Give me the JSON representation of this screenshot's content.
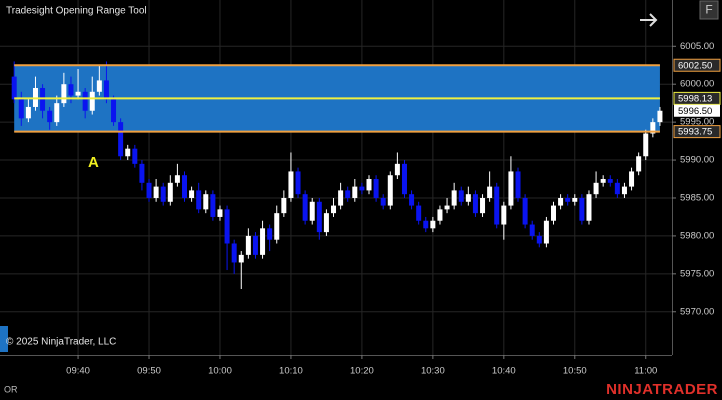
{
  "chart_data": {
    "type": "candlestick",
    "title": "Tradesight Opening Range Tool",
    "copyright": "© 2025 NinjaTrader, LLC",
    "footer_left": "OR",
    "brand": "NINJATRADER",
    "button": "F",
    "marker_text": "A",
    "up_color": "#ffffff",
    "down_color": "#0a14f0",
    "band_color": "#1e73c3",
    "grid": true,
    "x": [
      571,
      572,
      573,
      574,
      575,
      576,
      577,
      578,
      579,
      580,
      581,
      582,
      583,
      584,
      585,
      586,
      587,
      588,
      589,
      590,
      591,
      592,
      593,
      594,
      595,
      596,
      597,
      598,
      599,
      600,
      601,
      602,
      603,
      604,
      605,
      606,
      607,
      608,
      609,
      610,
      611,
      612,
      613,
      614,
      615,
      616,
      617,
      618,
      619,
      620,
      621,
      622,
      623,
      624,
      625,
      626,
      627,
      628,
      629,
      630,
      631,
      632,
      633,
      634,
      635,
      636,
      637,
      638,
      639,
      640,
      641,
      642,
      643,
      644,
      645,
      646,
      647,
      648,
      649,
      650,
      651,
      652,
      653,
      654,
      655,
      656,
      657,
      658,
      659,
      660,
      661,
      662
    ],
    "open": [
      6001.0,
      5998.0,
      5995.5,
      5997.0,
      5999.5,
      5996.5,
      5995.0,
      5997.5,
      6000.0,
      5998.5,
      5999.0,
      5996.5,
      5999.0,
      6000.5,
      5998.0,
      5995.0,
      5990.5,
      5991.5,
      5989.5,
      5987.0,
      5985.0,
      5986.5,
      5984.5,
      5987.0,
      5988.0,
      5985.0,
      5986.0,
      5983.5,
      5985.5,
      5982.5,
      5983.5,
      5979.0,
      5976.5,
      5977.5,
      5980.0,
      5977.5,
      5981.0,
      5979.5,
      5983.0,
      5985.0,
      5988.5,
      5985.5,
      5982.0,
      5984.5,
      5980.5,
      5983.0,
      5984.0,
      5986.0,
      5985.0,
      5986.5,
      5986.0,
      5987.5,
      5985.0,
      5984.0,
      5988.0,
      5989.5,
      5985.5,
      5984.0,
      5982.0,
      5981.0,
      5982.0,
      5983.5,
      5984.0,
      5986.0,
      5984.5,
      5985.5,
      5983.0,
      5985.0,
      5986.5,
      5981.5,
      5984.0,
      5988.5,
      5985.0,
      5981.5,
      5980.0,
      5979.0,
      5982.0,
      5984.0,
      5985.0,
      5984.5,
      5985.0,
      5982.0,
      5985.5,
      5987.0,
      5987.5,
      5987.0,
      5985.5,
      5986.5,
      5988.5,
      5990.5,
      5993.5,
      5995.0
    ],
    "high": [
      6003.0,
      5999.0,
      5998.0,
      6001.0,
      6000.0,
      5997.0,
      5998.5,
      6001.5,
      6001.0,
      6002.0,
      5999.5,
      6001.0,
      6002.5,
      6003.0,
      5998.5,
      5995.5,
      5992.0,
      5992.0,
      5990.0,
      5987.5,
      5987.5,
      5987.0,
      5988.0,
      5989.5,
      5988.5,
      5986.5,
      5987.0,
      5986.0,
      5986.0,
      5984.0,
      5984.0,
      5979.5,
      5978.0,
      5981.0,
      5980.5,
      5982.0,
      5981.5,
      5984.0,
      5986.0,
      5991.0,
      5989.0,
      5986.0,
      5985.0,
      5985.0,
      5983.5,
      5985.0,
      5987.0,
      5986.5,
      5987.5,
      5987.0,
      5988.0,
      5988.0,
      5985.5,
      5988.5,
      5991.0,
      5990.0,
      5986.0,
      5984.5,
      5982.5,
      5982.5,
      5984.0,
      5985.0,
      5987.0,
      5986.5,
      5986.5,
      5986.0,
      5985.5,
      5988.5,
      5987.0,
      5984.5,
      5990.5,
      5989.0,
      5985.5,
      5982.0,
      5980.5,
      5982.5,
      5984.5,
      5985.5,
      5985.5,
      5985.5,
      5985.5,
      5986.0,
      5988.5,
      5988.0,
      5988.0,
      5987.5,
      5987.0,
      5989.0,
      5991.0,
      5994.0,
      5995.5,
      5997.0
    ],
    "low": [
      5997.5,
      5994.5,
      5995.0,
      5996.5,
      5995.5,
      5994.0,
      5994.5,
      5997.0,
      5997.5,
      5998.0,
      5995.5,
      5996.0,
      5998.5,
      5997.5,
      5994.5,
      5990.0,
      5990.0,
      5989.0,
      5986.0,
      5984.5,
      5984.5,
      5984.0,
      5984.0,
      5986.5,
      5984.5,
      5984.5,
      5983.0,
      5983.0,
      5982.0,
      5982.0,
      5975.5,
      5975.0,
      5973.0,
      5977.0,
      5977.0,
      5977.0,
      5978.0,
      5979.0,
      5982.5,
      5984.5,
      5985.0,
      5981.5,
      5981.5,
      5979.5,
      5980.0,
      5982.5,
      5983.5,
      5984.5,
      5984.5,
      5985.5,
      5985.5,
      5984.5,
      5983.5,
      5983.5,
      5987.5,
      5985.0,
      5983.5,
      5981.5,
      5980.5,
      5980.5,
      5981.5,
      5983.0,
      5983.5,
      5984.0,
      5984.0,
      5982.5,
      5982.5,
      5984.5,
      5981.0,
      5979.5,
      5983.5,
      5984.5,
      5981.0,
      5979.5,
      5978.5,
      5978.5,
      5981.5,
      5983.5,
      5984.0,
      5984.0,
      5981.5,
      5981.5,
      5985.0,
      5986.5,
      5986.5,
      5985.0,
      5985.0,
      5986.0,
      5988.0,
      5990.0,
      5993.0,
      5994.5
    ],
    "close": [
      5998.0,
      5995.5,
      5997.0,
      5999.5,
      5996.5,
      5995.0,
      5997.5,
      6000.0,
      5998.5,
      5999.0,
      5996.5,
      5999.0,
      6000.5,
      5998.0,
      5995.0,
      5990.5,
      5991.5,
      5989.5,
      5987.0,
      5985.0,
      5986.5,
      5984.5,
      5987.0,
      5988.0,
      5985.0,
      5986.0,
      5983.5,
      5985.5,
      5982.5,
      5983.5,
      5979.0,
      5976.5,
      5977.5,
      5980.0,
      5977.5,
      5981.0,
      5979.5,
      5983.0,
      5985.0,
      5988.5,
      5985.5,
      5982.0,
      5984.5,
      5980.5,
      5983.0,
      5984.0,
      5986.0,
      5985.0,
      5986.5,
      5986.0,
      5987.5,
      5985.0,
      5984.0,
      5988.0,
      5989.5,
      5985.5,
      5984.0,
      5982.0,
      5981.0,
      5982.0,
      5983.5,
      5984.0,
      5986.0,
      5984.5,
      5985.5,
      5983.0,
      5985.0,
      5986.5,
      5981.5,
      5984.0,
      5988.5,
      5985.0,
      5981.5,
      5980.0,
      5979.0,
      5982.0,
      5984.0,
      5985.0,
      5984.5,
      5985.0,
      5982.0,
      5985.5,
      5987.0,
      5987.5,
      5987.0,
      5985.5,
      5986.5,
      5988.5,
      5990.5,
      5993.5,
      5995.0,
      5996.5
    ],
    "xlim": [
      569,
      663.7
    ],
    "ylim": [
      5964.3,
      6011.1
    ],
    "xticks": [
      {
        "value": 580,
        "label": "09:40"
      },
      {
        "value": 590,
        "label": "09:50"
      },
      {
        "value": 600,
        "label": "10:00"
      },
      {
        "value": 610,
        "label": "10:10"
      },
      {
        "value": 620,
        "label": "10:20"
      },
      {
        "value": 630,
        "label": "10:30"
      },
      {
        "value": 640,
        "label": "10:40"
      },
      {
        "value": 650,
        "label": "10:50"
      },
      {
        "value": 660,
        "label": "11:00"
      }
    ],
    "yticks": [
      {
        "value": 5970,
        "label": "5970.00"
      },
      {
        "value": 5975,
        "label": "5975.00"
      },
      {
        "value": 5980,
        "label": "5980.00"
      },
      {
        "value": 5985,
        "label": "5985.00"
      },
      {
        "value": 5990,
        "label": "5990.00"
      },
      {
        "value": 5995,
        "label": "5995.00"
      },
      {
        "value": 6000,
        "label": "6000.00"
      },
      {
        "value": 6005,
        "label": "6005.00"
      }
    ],
    "levels": [
      {
        "value": 6002.5,
        "label": "6002.50",
        "color": "#f0a040"
      },
      {
        "value": 5998.13,
        "label": "5998.13",
        "color": "#f0f040"
      },
      {
        "value": 5993.75,
        "label": "5993.75",
        "color": "#f0a040"
      }
    ],
    "last_price": {
      "value": 5996.5,
      "label": "5996.50"
    }
  }
}
